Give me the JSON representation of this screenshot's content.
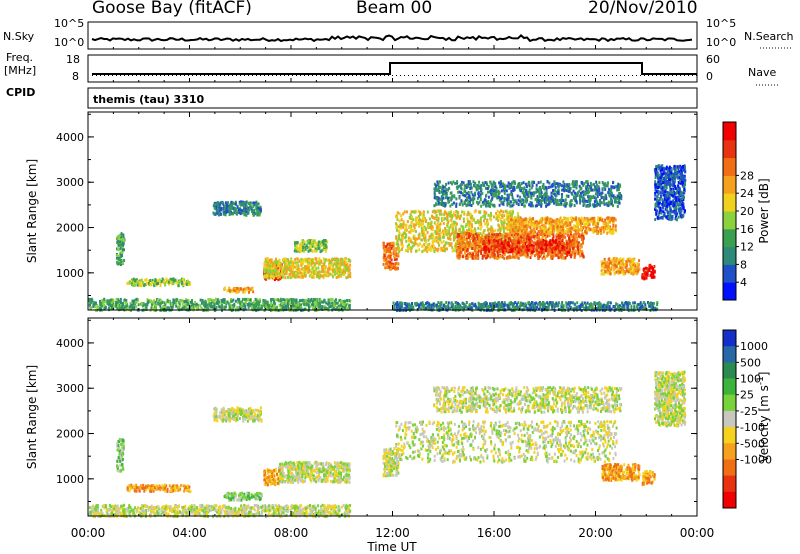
{
  "header": {
    "station": "Goose Bay (fitACF)",
    "beam": "Beam 00",
    "date": "20/Nov/2010"
  },
  "noise_panel": {
    "left_label": "N.Sky",
    "right_label": "N.Search",
    "ticks_left": [
      "10^5",
      "10^0"
    ],
    "ticks_right": [
      "10^5",
      "10^0"
    ]
  },
  "freq_panel": {
    "left_label_1": "Freq.",
    "left_label_2": "[MHz]",
    "ticks_left": [
      "18",
      "8"
    ],
    "right_label": "Nave",
    "ticks_right": [
      "60",
      "0"
    ]
  },
  "cpid_panel": {
    "label": "CPID",
    "value": "themis (tau) 3310"
  },
  "chart_data": [
    {
      "type": "heatmap",
      "name": "power",
      "ylabel": "Slant Range [km]",
      "yticks": [
        "1000",
        "2000",
        "3000",
        "4000"
      ],
      "ylim": [
        180,
        4550
      ],
      "xlim_hours": [
        0,
        24
      ],
      "colorbar_label": "Power [dB]",
      "colorbar_ticks": [
        "4",
        "8",
        "12",
        "16",
        "20",
        "24",
        "28"
      ],
      "colors": [
        "#0010ff",
        "#2050c8",
        "#2e8a78",
        "#3aa050",
        "#8cd23c",
        "#f0d21e",
        "#f5a01e",
        "#f06e14",
        "#e83210",
        "#f00000"
      ],
      "regions": [
        {
          "t": [
            0.0,
            10.3
          ],
          "r": [
            200,
            450
          ],
          "level": 3
        },
        {
          "t": [
            1.1,
            1.4
          ],
          "r": [
            1200,
            1900
          ],
          "level": 3
        },
        {
          "t": [
            1.5,
            4.0
          ],
          "r": [
            750,
            900
          ],
          "level": 4
        },
        {
          "t": [
            5.3,
            6.5
          ],
          "r": [
            600,
            700
          ],
          "level": 6
        },
        {
          "t": [
            6.9,
            7.6
          ],
          "r": [
            880,
            1250
          ],
          "level": 9
        },
        {
          "t": [
            6.9,
            10.3
          ],
          "r": [
            920,
            1350
          ],
          "level": 5
        },
        {
          "t": [
            8.1,
            9.4
          ],
          "r": [
            1500,
            1750
          ],
          "level": 4
        },
        {
          "t": [
            4.9,
            6.8
          ],
          "r": [
            2300,
            2600
          ],
          "level": 2
        },
        {
          "t": [
            11.6,
            12.2
          ],
          "r": [
            1100,
            1700
          ],
          "level": 7
        },
        {
          "t": [
            12.0,
            22.4
          ],
          "r": [
            200,
            380
          ],
          "level": 2
        },
        {
          "t": [
            12.1,
            17.0
          ],
          "r": [
            1500,
            2400
          ],
          "level": 5
        },
        {
          "t": [
            14.5,
            19.5
          ],
          "r": [
            1350,
            1900
          ],
          "level": 7
        },
        {
          "t": [
            15.5,
            19.0
          ],
          "r": [
            1480,
            1750
          ],
          "level": 8
        },
        {
          "t": [
            16.5,
            20.8
          ],
          "r": [
            1900,
            2250
          ],
          "level": 6
        },
        {
          "t": [
            13.6,
            21.0
          ],
          "r": [
            2500,
            3050
          ],
          "level": 2
        },
        {
          "t": [
            20.2,
            21.7
          ],
          "r": [
            1000,
            1350
          ],
          "level": 6
        },
        {
          "t": [
            21.8,
            22.3
          ],
          "r": [
            900,
            1200
          ],
          "level": 9
        },
        {
          "t": [
            22.3,
            23.5
          ],
          "r": [
            2200,
            3400
          ],
          "level": 1
        }
      ]
    },
    {
      "type": "heatmap",
      "name": "velocity",
      "ylabel": "Slant Range [km]",
      "yticks": [
        "1000",
        "2000",
        "3000",
        "4000"
      ],
      "ylim": [
        180,
        4550
      ],
      "xlim_hours": [
        0,
        24
      ],
      "xticks": [
        "00:00",
        "04:00",
        "08:00",
        "12:00",
        "16:00",
        "20:00",
        "00:00"
      ],
      "xlabel": "Time UT",
      "colorbar_label": "Velocity [m s",
      "colorbar_label_superscript": "-1",
      "colorbar_label_end": "]",
      "colorbar_ticks": [
        "1000",
        "500",
        "100",
        "25",
        "-25",
        "-100",
        "-500",
        "-1000"
      ],
      "colors": [
        "#1530c8",
        "#2868a8",
        "#2a8a52",
        "#3cb43c",
        "#78d23c",
        "#c8c8c0",
        "#f5d21e",
        "#f5a01e",
        "#f06e14",
        "#e83210",
        "#f00000"
      ],
      "regions": [
        {
          "t": [
            0.0,
            10.3
          ],
          "r": [
            200,
            450
          ],
          "level": 5
        },
        {
          "t": [
            1.1,
            1.4
          ],
          "r": [
            1200,
            1900
          ],
          "level": 4
        },
        {
          "t": [
            1.5,
            4.0
          ],
          "r": [
            750,
            900
          ],
          "level": 7
        },
        {
          "t": [
            5.3,
            6.8
          ],
          "r": [
            560,
            720
          ],
          "level": 4
        },
        {
          "t": [
            6.9,
            7.6
          ],
          "r": [
            900,
            1250
          ],
          "level": 7
        },
        {
          "t": [
            7.5,
            10.3
          ],
          "r": [
            950,
            1400
          ],
          "level": 5
        },
        {
          "t": [
            4.9,
            6.8
          ],
          "r": [
            2300,
            2600
          ],
          "level": 5
        },
        {
          "t": [
            11.6,
            12.2
          ],
          "r": [
            1100,
            1700
          ],
          "level": 5
        },
        {
          "t": [
            12.1,
            20.8
          ],
          "r": [
            1400,
            2300
          ],
          "level": 5
        },
        {
          "t": [
            13.6,
            21.0
          ],
          "r": [
            2500,
            3050
          ],
          "level": 5
        },
        {
          "t": [
            20.2,
            21.7
          ],
          "r": [
            1000,
            1350
          ],
          "level": 7
        },
        {
          "t": [
            21.8,
            22.3
          ],
          "r": [
            900,
            1200
          ],
          "level": 7
        },
        {
          "t": [
            22.3,
            23.5
          ],
          "r": [
            2200,
            3400
          ],
          "level": 5
        }
      ]
    }
  ]
}
